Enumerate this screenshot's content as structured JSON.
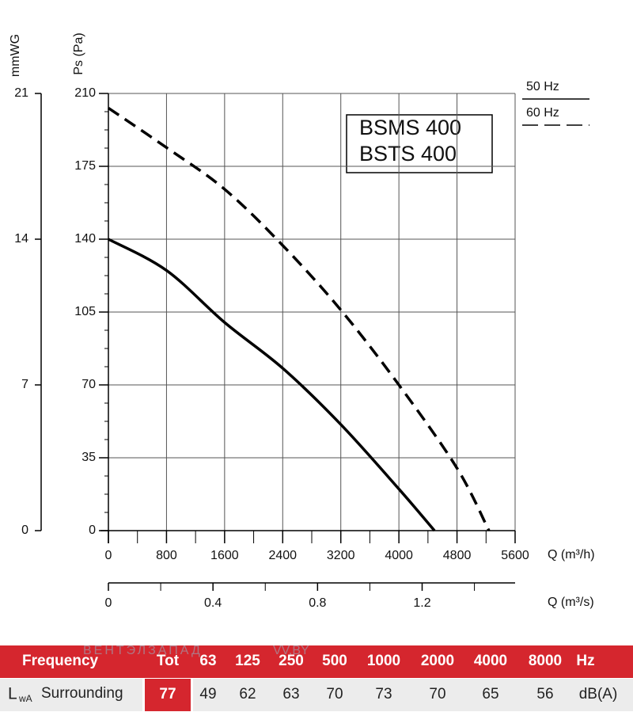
{
  "chart_data": {
    "type": "line",
    "model_labels": [
      "BSMS 400",
      "BSTS 400"
    ],
    "y_label": "Ps (Pa)",
    "y2_label": "mmWG",
    "x_label": "Q (m³/h)",
    "x2_label": "Q (m³/s)",
    "xlim": [
      0,
      5600
    ],
    "xticks": [
      0,
      800,
      1600,
      2400,
      3200,
      4000,
      4800,
      5600
    ],
    "ylim": [
      0,
      210
    ],
    "yticks": [
      0,
      35,
      70,
      105,
      140,
      175,
      210
    ],
    "y2lim": [
      0,
      21
    ],
    "y2ticks": [
      0,
      7,
      14,
      21
    ],
    "x2lim": [
      0,
      1.5556
    ],
    "x2ticks": [
      0,
      0.4,
      0.8,
      1.2
    ],
    "grid": true,
    "series": [
      {
        "name": "50 Hz",
        "color": "#000000",
        "dash": "solid",
        "x": [
          0,
          800,
          1600,
          2400,
          3200,
          4000,
          4490
        ],
        "values": [
          140,
          125,
          100,
          78,
          51,
          20,
          0
        ]
      },
      {
        "name": "60 Hz",
        "color": "#000000",
        "dash": "dashed",
        "x": [
          0,
          800,
          1600,
          2400,
          3200,
          4000,
          4800,
          5240
        ],
        "values": [
          203,
          184,
          164,
          137,
          106,
          70,
          30,
          0
        ]
      }
    ]
  },
  "table": {
    "header": [
      "Frequency",
      "Tot",
      "63",
      "125",
      "250",
      "500",
      "1000",
      "2000",
      "4000",
      "8000",
      "Hz"
    ],
    "row": {
      "label": "L",
      "label_sub": "wA",
      "label_rest": "Surrounding",
      "tot": "77",
      "values": [
        "49",
        "62",
        "63",
        "70",
        "73",
        "70",
        "65",
        "56"
      ],
      "unit": "dB(A)"
    }
  },
  "watermark": [
    "ВЕНТЭЛЗАПАД",
    "VV.BY"
  ]
}
